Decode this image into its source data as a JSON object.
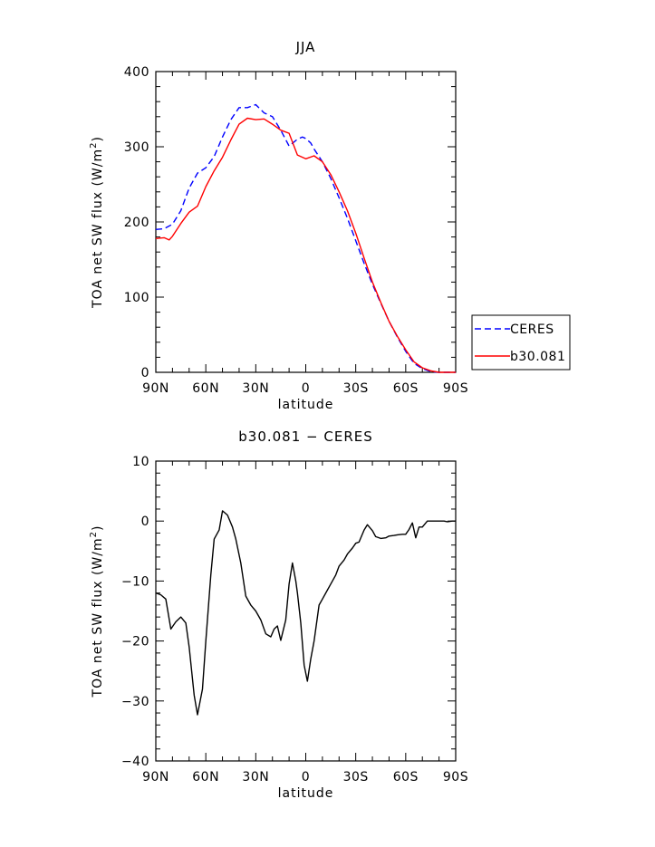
{
  "chart_data": [
    {
      "type": "line",
      "title": "JJA",
      "xlabel": "latitude",
      "ylabel": "TOA net SW flux (W/m",
      "ylabel_sup": "2",
      "ylabel_end": ")",
      "x_ticks": [
        90,
        60,
        30,
        0,
        -30,
        -60,
        -90
      ],
      "x_tick_labels": [
        "90N",
        "60N",
        "30N",
        "0",
        "30S",
        "60S",
        "90S"
      ],
      "xlim": [
        90,
        -90
      ],
      "ylim": [
        0,
        400
      ],
      "y_ticks": [
        0,
        100,
        200,
        300,
        400
      ],
      "y_tick_labels": [
        "0",
        "100",
        "200",
        "300",
        "400"
      ],
      "legend_placement": "right",
      "series": [
        {
          "name": "CERES",
          "color": "#0000ff",
          "dash": "dashed",
          "x": [
            90,
            85,
            80,
            75,
            70,
            65,
            60,
            55,
            50,
            45,
            40,
            35,
            30,
            25,
            20,
            15,
            10,
            5,
            2,
            0,
            -3,
            -5,
            -10,
            -15,
            -20,
            -25,
            -30,
            -35,
            -40,
            -45,
            -50,
            -55,
            -60,
            -65,
            -70,
            -75,
            -80,
            -85,
            -90
          ],
          "y": [
            190,
            191,
            197,
            215,
            245,
            265,
            272,
            287,
            313,
            336,
            352,
            352,
            356,
            345,
            340,
            322,
            301,
            310,
            313,
            311,
            305,
            297,
            280,
            258,
            232,
            205,
            175,
            145,
            117,
            92,
            68,
            47,
            28,
            12,
            5,
            1,
            0,
            0,
            0
          ]
        },
        {
          "name": "b30.081",
          "color": "#ff0000",
          "dash": "solid",
          "x": [
            90,
            85,
            82,
            80,
            75,
            70,
            65,
            60,
            55,
            50,
            45,
            40,
            35,
            30,
            25,
            20,
            15,
            10,
            5,
            0,
            -5,
            -10,
            -15,
            -20,
            -25,
            -30,
            -35,
            -40,
            -45,
            -50,
            -55,
            -60,
            -65,
            -70,
            -75,
            -80,
            -85,
            -90
          ],
          "y": [
            178,
            179,
            176,
            181,
            198,
            213,
            221,
            247,
            268,
            286,
            309,
            330,
            338,
            336,
            337,
            330,
            322,
            318,
            289,
            284,
            288,
            280,
            263,
            240,
            215,
            185,
            152,
            120,
            93,
            68,
            48,
            30,
            14,
            6,
            2,
            0,
            0,
            0
          ]
        }
      ]
    },
    {
      "type": "line",
      "title": "b30.081 − CERES",
      "xlabel": "latitude",
      "ylabel": "TOA net SW flux (W/m",
      "ylabel_sup": "2",
      "ylabel_end": ")",
      "x_ticks": [
        90,
        60,
        30,
        0,
        -30,
        -60,
        -90
      ],
      "x_tick_labels": [
        "90N",
        "60N",
        "30N",
        "0",
        "30S",
        "60S",
        "90S"
      ],
      "xlim": [
        90,
        -90
      ],
      "ylim": [
        -40,
        10
      ],
      "y_ticks": [
        -40,
        -30,
        -20,
        -10,
        0,
        10
      ],
      "y_tick_labels": [
        "−40",
        "−30",
        "−20",
        "−10",
        "0",
        "10"
      ],
      "series": [
        {
          "name": "",
          "color": "#000000",
          "dash": "solid",
          "x": [
            90,
            87,
            84,
            81,
            78,
            75,
            72,
            70,
            67,
            65,
            62,
            60,
            57,
            55,
            52,
            50,
            47,
            44,
            42,
            39,
            36,
            33,
            30,
            27,
            24,
            21,
            19,
            17,
            15,
            12,
            10,
            8,
            6,
            5,
            3,
            1,
            -1,
            -3,
            -5,
            -8,
            -10,
            -12,
            -15,
            -18,
            -20,
            -23,
            -25,
            -28,
            -30,
            -32,
            -35,
            -37,
            -40,
            -42,
            -45,
            -48,
            -50,
            -53,
            -55,
            -58,
            -60,
            -62,
            -64,
            -66,
            -68,
            -70,
            -73,
            -75,
            -78,
            -80,
            -83,
            -85,
            -88,
            -90
          ],
          "y": [
            -12,
            -12.3,
            -13,
            -18,
            -16.8,
            -16,
            -17,
            -21,
            -29,
            -32.3,
            -28,
            -20,
            -9,
            -3,
            -1.5,
            1.7,
            1,
            -1,
            -3,
            -7,
            -12.5,
            -14,
            -15,
            -16.5,
            -18.8,
            -19.3,
            -18,
            -17.5,
            -19.9,
            -16.5,
            -10.5,
            -7,
            -10,
            -12,
            -17,
            -24,
            -26.7,
            -23,
            -20,
            -14,
            -13,
            -12,
            -10.5,
            -9,
            -7.5,
            -6.5,
            -5.5,
            -4.5,
            -3.7,
            -3.5,
            -1.5,
            -0.6,
            -1.6,
            -2.6,
            -2.9,
            -2.8,
            -2.5,
            -2.4,
            -2.3,
            -2.2,
            -2.2,
            -1.4,
            -0.3,
            -2.8,
            -1,
            -1,
            0,
            0,
            0,
            0,
            0,
            -0.1,
            0,
            0
          ]
        }
      ]
    }
  ]
}
